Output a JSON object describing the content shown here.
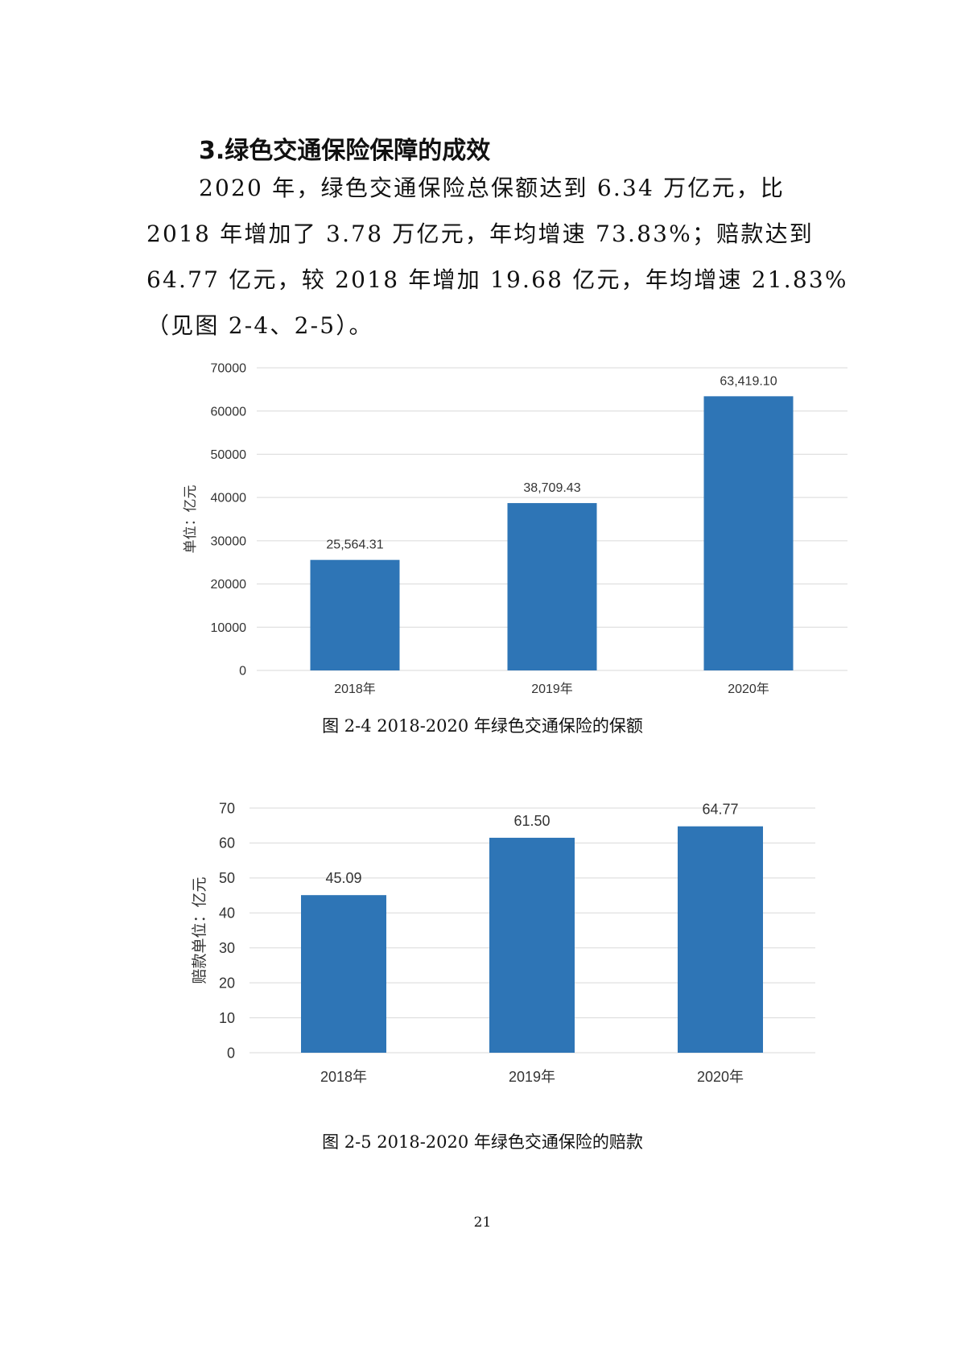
{
  "section": {
    "heading": "3.绿色交通保险保障的成效",
    "paragraph_lines": [
      "2020 年，绿色交通保险总保额达到 6.34 万亿元，比",
      "2018 年增加了 3.78 万亿元，年均增速 73.83%；赔款达到",
      "64.77 亿元，较 2018 年增加 19.68 亿元，年均增速 21.83%",
      "（见图 2-4、2-5）。"
    ]
  },
  "captions": {
    "fig_2_4": "图 2-4   2018-2020 年绿色交通保险的保额",
    "fig_2_5": "图 2-5   2018-2020 年绿色交通保险的赔款"
  },
  "page_number": "21",
  "chart_data": [
    {
      "type": "bar",
      "categories": [
        "2018年",
        "2019年",
        "2020年"
      ],
      "values": [
        25564.31,
        38709.43,
        63419.1
      ],
      "data_labels": [
        "25,564.31",
        "38,709.43",
        "63,419.10"
      ],
      "ylabel": "单位：亿元",
      "ylim": [
        0,
        70000
      ],
      "yticks": [
        "0",
        "10000",
        "20000",
        "30000",
        "40000",
        "50000",
        "60000",
        "70000"
      ],
      "grid": true,
      "bar_color": "#2E75B6"
    },
    {
      "type": "bar",
      "categories": [
        "2018年",
        "2019年",
        "2020年"
      ],
      "values": [
        45.09,
        61.5,
        64.77
      ],
      "data_labels": [
        "45.09",
        "61.50",
        "64.77"
      ],
      "ylabel": "赔款单位：亿元",
      "ylim": [
        0,
        70
      ],
      "yticks": [
        "0",
        "10",
        "20",
        "30",
        "40",
        "50",
        "60",
        "70"
      ],
      "grid": true,
      "bar_color": "#2E75B6"
    }
  ]
}
